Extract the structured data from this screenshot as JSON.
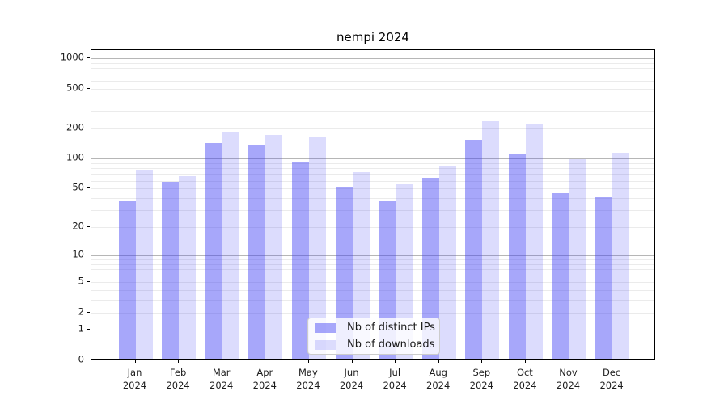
{
  "title": "nempi 2024",
  "chart_data": {
    "type": "bar",
    "title": "nempi 2024",
    "scale": "symlog",
    "scale_transform": "ln(1+v)",
    "categories": [
      "Jan",
      "Feb",
      "Mar",
      "Apr",
      "May",
      "Jun",
      "Jul",
      "Aug",
      "Sep",
      "Oct",
      "Nov",
      "Dec"
    ],
    "year_label": "2024",
    "series": [
      {
        "name": "Nb of distinct IPs",
        "color": "rgba(60,60,245,0.45)",
        "values": [
          36,
          56,
          138,
          132,
          90,
          49,
          36,
          62,
          148,
          106,
          43,
          39
        ]
      },
      {
        "name": "Nb of downloads",
        "color": "rgba(60,60,245,0.18)",
        "values": [
          74,
          64,
          178,
          167,
          158,
          70,
          53,
          80,
          228,
          210,
          95,
          110
        ]
      }
    ],
    "y_ticks": [
      1000,
      500,
      200,
      100,
      50,
      20,
      10,
      5,
      2,
      1,
      0
    ],
    "y_major_gridlines": [
      1,
      10,
      100,
      1000
    ],
    "ylim": [
      0,
      1180
    ],
    "grid": true,
    "legend_position": "inside lower center",
    "xlabel": "",
    "ylabel": ""
  },
  "colors": {
    "background": "#ffffff",
    "spine": "#000000",
    "grid_major": "#b6b6b6",
    "grid_minor": "#ebebeb",
    "tick_text": "#1c1c1c"
  }
}
